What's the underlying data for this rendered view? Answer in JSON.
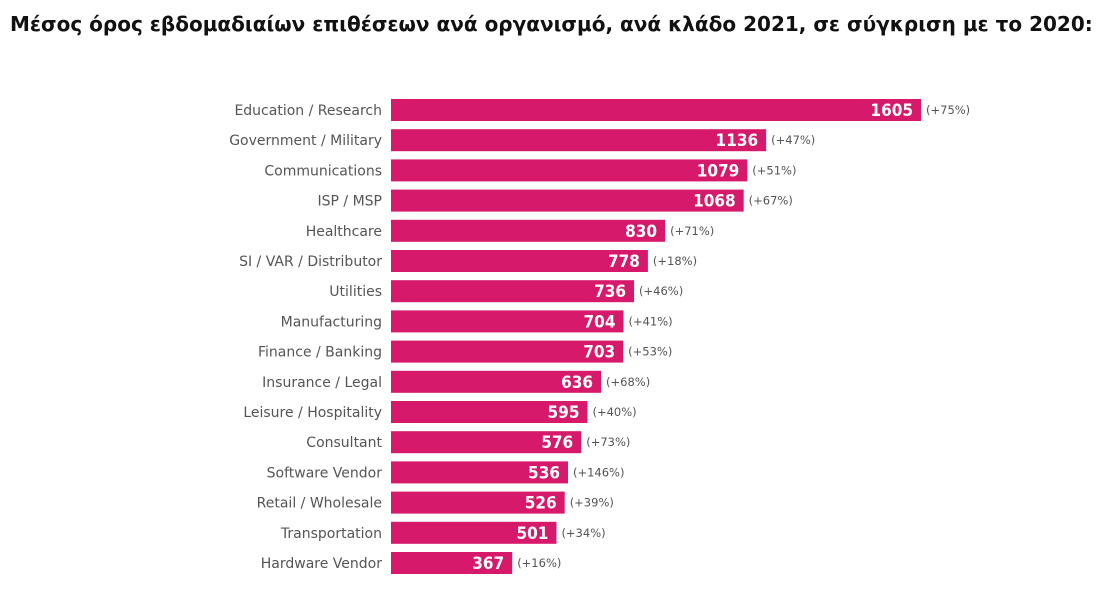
{
  "page": {
    "title": "Μέσος όρος εβδομαδιαίων επιθέσεων ανά οργανισμό, ανά κλάδο 2021, σε σύγκριση με το 2020:"
  },
  "colors": {
    "bar": "#d6196a",
    "label_text": "#555555",
    "value_text": "#ffffff"
  },
  "chart_data": {
    "type": "bar",
    "orientation": "horizontal",
    "title": "Μέσος όρος εβδομαδιαίων επιθέσεων ανά οργανισμό, ανά κλάδο 2021, σε σύγκριση με το 2020:",
    "xlabel": "",
    "ylabel": "",
    "grid": false,
    "legend": "none",
    "xlim": [
      0,
      1605
    ],
    "categories": [
      "Education / Research",
      "Government / Military",
      "Communications",
      "ISP / MSP",
      "Healthcare",
      "SI / VAR / Distributor",
      "Utilities",
      "Manufacturing",
      "Finance / Banking",
      "Insurance / Legal",
      "Leisure / Hospitality",
      "Consultant",
      "Software Vendor",
      "Retail / Wholesale",
      "Transportation",
      "Hardware Vendor"
    ],
    "values": [
      1605,
      1136,
      1079,
      1068,
      830,
      778,
      736,
      704,
      703,
      636,
      595,
      576,
      536,
      526,
      501,
      367
    ],
    "change_labels": [
      "(+75%)",
      "(+47%)",
      "(+51%)",
      "(+67%)",
      "(+71%)",
      "(+18%)",
      "(+46%)",
      "(+41%)",
      "(+53%)",
      "(+68%)",
      "(+40%)",
      "(+73%)",
      "(+146%)",
      "(+39%)",
      "(+34%)",
      "(+16%)"
    ]
  }
}
